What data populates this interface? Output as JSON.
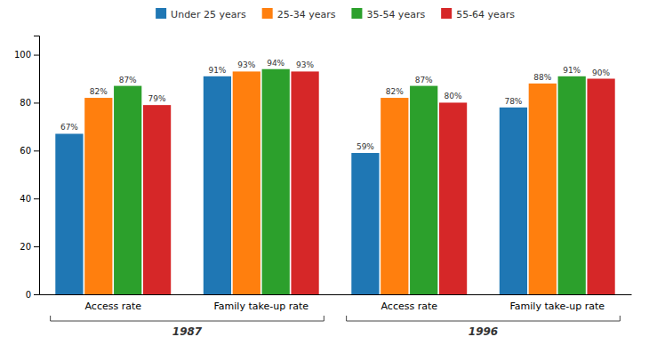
{
  "chart_data": {
    "type": "bar",
    "categories": [
      "Access rate",
      "Family take-up rate",
      "Access rate",
      "Family take-up rate"
    ],
    "category_groups": [
      "1987",
      "1987",
      "1996",
      "1996"
    ],
    "series": [
      {
        "name": "Under 25 years",
        "values": [
          67,
          91,
          59,
          78
        ],
        "value_labels": [
          "67%",
          "91%",
          "59%",
          "78%"
        ]
      },
      {
        "name": "25-34 years",
        "values": [
          82,
          93,
          82,
          88
        ],
        "value_labels": [
          "82%",
          "93%",
          "82%",
          "88%"
        ]
      },
      {
        "name": "35-54 years",
        "values": [
          87,
          94,
          87,
          91
        ],
        "value_labels": [
          "87%",
          "94%",
          "87%",
          "91%"
        ]
      },
      {
        "name": "55-64 years",
        "values": [
          79,
          93,
          80,
          90
        ],
        "value_labels": [
          "79%",
          "93%",
          "80%",
          "90%"
        ]
      }
    ],
    "ylim": [
      0,
      108
    ],
    "yticks": [
      0,
      20,
      40,
      60,
      80,
      100
    ],
    "grid": false,
    "legend": "top",
    "data_labels": true
  }
}
